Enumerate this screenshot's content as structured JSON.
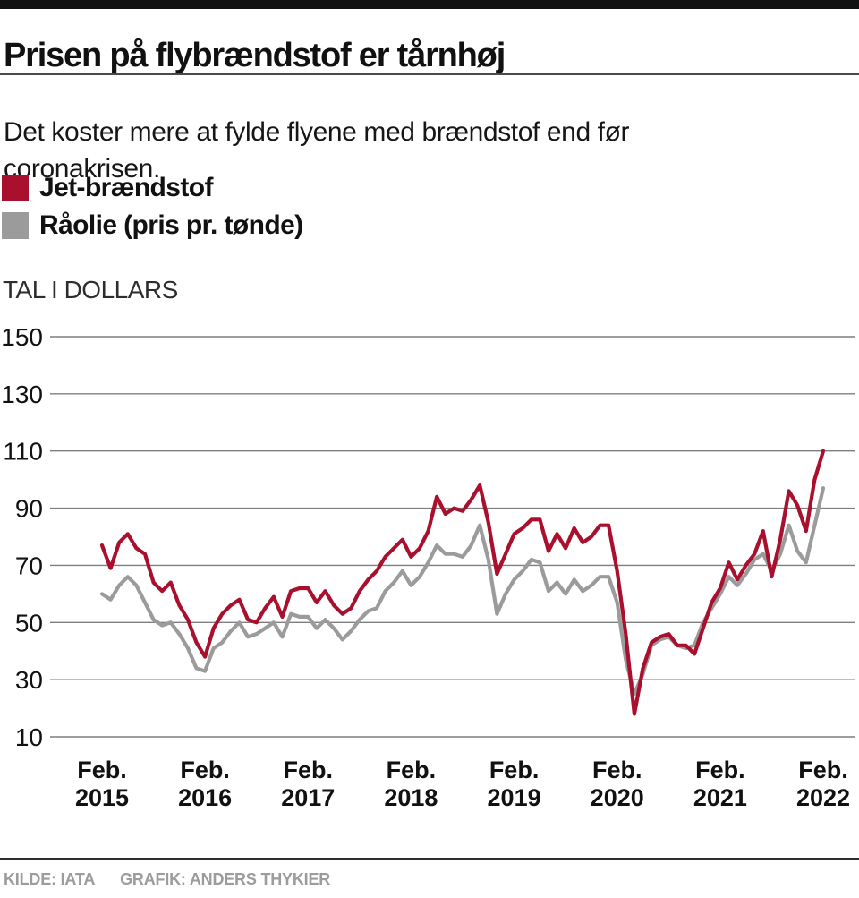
{
  "header": {
    "title": "Prisen på flybrændstof er tårnhøj",
    "subtitle": "Det koster mere at fylde flyene med brændstof end før coronakrisen."
  },
  "legend": [
    {
      "label": "Jet-brændstof",
      "color": "#a8102e"
    },
    {
      "label": "Råolie (pris pr. tønde)",
      "color": "#9b9b9b"
    }
  ],
  "units_label": "TAL I DOLLARS",
  "footer": {
    "source": "KILDE: IATA",
    "credit": "GRAFIK: ANDERS THYKIER"
  },
  "chart_data": {
    "type": "line",
    "title": "Prisen på flybrændstof er tårnhøj",
    "ylabel": "TAL I DOLLARS",
    "ylim": [
      10,
      150
    ],
    "yticks": [
      150,
      130,
      110,
      90,
      70,
      50,
      30,
      10
    ],
    "grid": "horizontal",
    "legend_position": "top-left",
    "x_unit": "month",
    "x_start": "2015-02",
    "x_end": "2022-02",
    "x_tick_labels": [
      {
        "line1": "Feb.",
        "line2": "2015"
      },
      {
        "line1": "Feb.",
        "line2": "2016"
      },
      {
        "line1": "Feb.",
        "line2": "2017"
      },
      {
        "line1": "Feb.",
        "line2": "2018"
      },
      {
        "line1": "Feb.",
        "line2": "2019"
      },
      {
        "line1": "Feb.",
        "line2": "2020"
      },
      {
        "line1": "Feb.",
        "line2": "2021"
      },
      {
        "line1": "Feb.",
        "line2": "2022"
      }
    ],
    "gridline_color": "#7e7e7e",
    "series": [
      {
        "name": "Jet-brændstof",
        "color": "#a8102e",
        "values": [
          77,
          69,
          78,
          81,
          76,
          74,
          64,
          61,
          64,
          56,
          51,
          43,
          38,
          48,
          53,
          56,
          58,
          51,
          50,
          55,
          59,
          52,
          61,
          62,
          62,
          57,
          61,
          56,
          53,
          55,
          61,
          65,
          68,
          73,
          76,
          79,
          73,
          76,
          82,
          94,
          88,
          90,
          89,
          93,
          98,
          85,
          67,
          74,
          81,
          83,
          86,
          86,
          75,
          81,
          76,
          83,
          78,
          80,
          84,
          84,
          68,
          46,
          18,
          34,
          43,
          45,
          46,
          42,
          42,
          39,
          48,
          57,
          62,
          71,
          65,
          70,
          74,
          82,
          66,
          79,
          96,
          91,
          82,
          100,
          110
        ]
      },
      {
        "name": "Råolie (pris pr. tønde)",
        "color": "#9b9b9b",
        "values": [
          60,
          58,
          63,
          66,
          63,
          57,
          51,
          49,
          50,
          46,
          41,
          34,
          33,
          41,
          43,
          47,
          50,
          45,
          46,
          48,
          50,
          45,
          53,
          52,
          52,
          48,
          51,
          48,
          44,
          47,
          51,
          54,
          55,
          61,
          64,
          68,
          63,
          66,
          71,
          77,
          74,
          74,
          73,
          77,
          84,
          72,
          53,
          60,
          65,
          68,
          72,
          71,
          61,
          64,
          60,
          65,
          61,
          63,
          66,
          66,
          57,
          37,
          25,
          32,
          42,
          44,
          45,
          42,
          41,
          42,
          50,
          55,
          60,
          66,
          63,
          67,
          72,
          74,
          68,
          74,
          84,
          75,
          71,
          84,
          97
        ]
      }
    ]
  }
}
